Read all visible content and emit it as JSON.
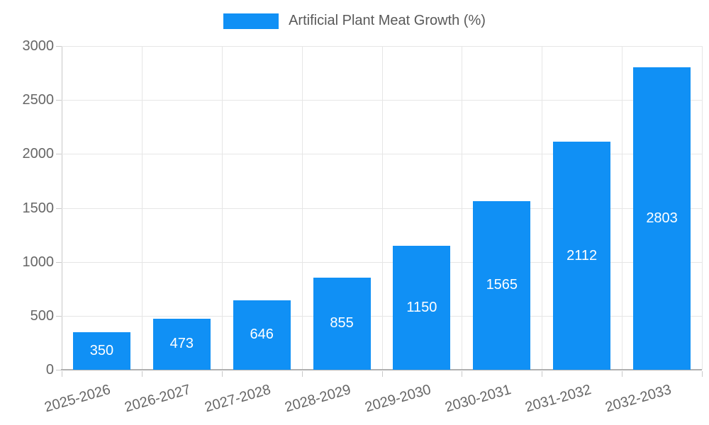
{
  "chart_data": {
    "type": "bar",
    "title": "Artificial Plant Meat Growth (%)",
    "legend": {
      "label": "Artificial Plant Meat Growth (%)",
      "position": "top-center"
    },
    "categories": [
      "2025-2026",
      "2026-2027",
      "2027-2028",
      "2028-2029",
      "2029-2030",
      "2030-2031",
      "2031-2032",
      "2032-2033"
    ],
    "values": [
      350,
      473,
      646,
      855,
      1150,
      1565,
      2112,
      2803
    ],
    "xlabel": "",
    "ylabel": "",
    "ylim": [
      0,
      3000
    ],
    "yticks": [
      0,
      500,
      1000,
      1500,
      2000,
      2500,
      3000
    ],
    "grid": true,
    "x_label_rotation_deg": -16,
    "value_labels": "centered-inside-bars",
    "colors": {
      "bar": "#1090F5",
      "value_label": "#FFFFFF",
      "axis_text": "#666666",
      "legend_text": "#595959",
      "gridline": "#E6E6E6",
      "axis_line": "#C9C9C9",
      "baseline": "#B0B0B0",
      "background": "#FFFFFF"
    }
  }
}
